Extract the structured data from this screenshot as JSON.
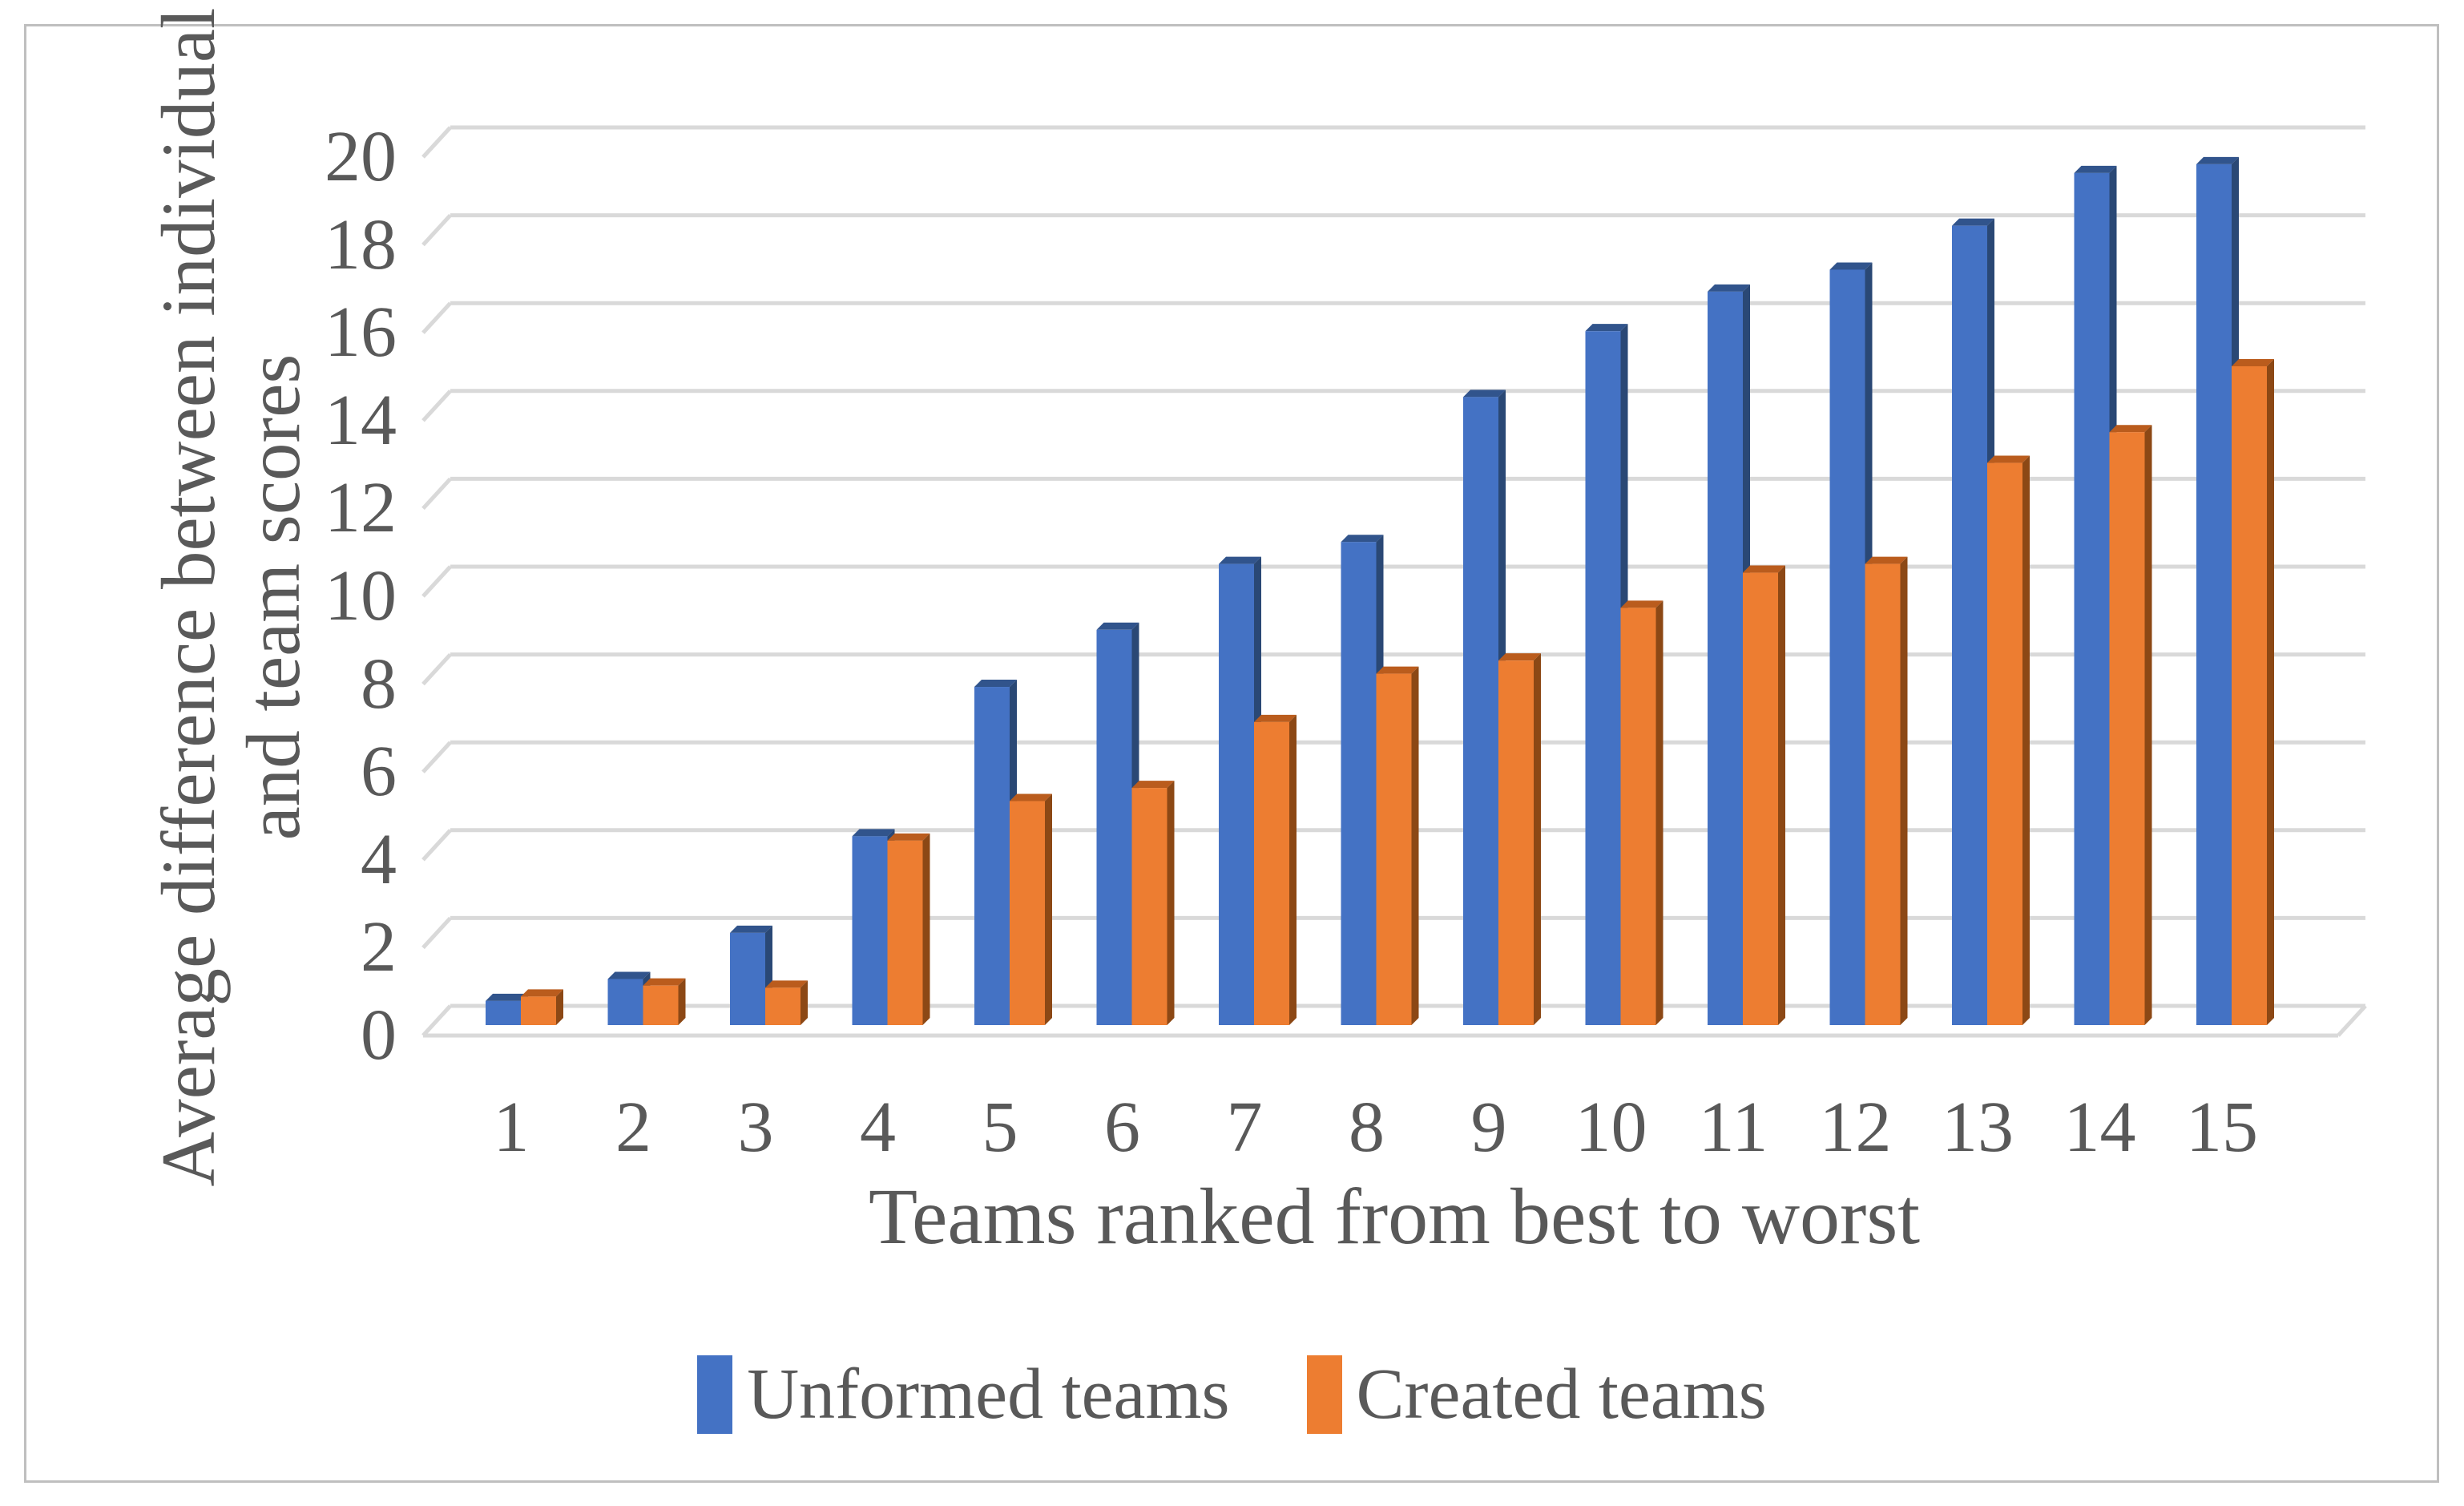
{
  "frame": {
    "border_color": "#BFBFBF",
    "background": "#FFFFFF"
  },
  "text_color": "#595959",
  "chart_data": {
    "type": "bar",
    "style": "3d-clustered-column",
    "title": "",
    "xlabel": "Teams ranked from best to worst",
    "ylabel_lines": [
      "Average difference between individual",
      "and team scores"
    ],
    "categories": [
      "1",
      "2",
      "3",
      "4",
      "5",
      "6",
      "7",
      "8",
      "9",
      "10",
      "11",
      "12",
      "13",
      "14",
      "15"
    ],
    "series": [
      {
        "name": "Unformed teams",
        "color": "#4472C4",
        "color_top": "#31548C",
        "color_side": "#2A4875",
        "values": [
          0.55,
          1.05,
          2.1,
          4.3,
          7.7,
          9.0,
          10.5,
          11.0,
          14.3,
          15.8,
          16.7,
          17.2,
          18.2,
          19.4,
          19.6
        ]
      },
      {
        "name": "Created teams",
        "color": "#ED7D31",
        "color_top": "#BA5C1D",
        "color_side": "#8C4815",
        "values": [
          0.65,
          0.9,
          0.85,
          4.2,
          5.1,
          5.4,
          6.9,
          8.0,
          8.3,
          9.5,
          10.3,
          10.5,
          12.8,
          13.5,
          15.0
        ]
      }
    ],
    "ylim": [
      0,
      20
    ],
    "yticks": [
      0,
      2,
      4,
      6,
      8,
      10,
      12,
      14,
      16,
      18,
      20
    ],
    "ytick_step": 2,
    "grid": true,
    "gridline_color": "#D9D9D9",
    "legend_position": "bottom"
  }
}
